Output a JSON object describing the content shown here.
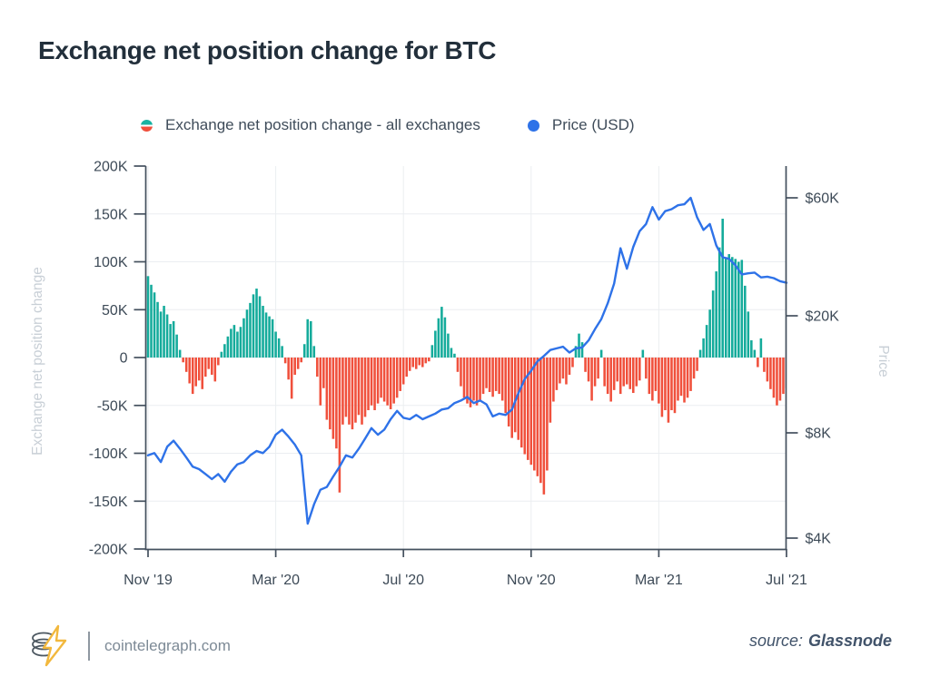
{
  "page": {
    "title": "Exchange net position change for BTC"
  },
  "legend": [
    {
      "label": "Exchange net position change - all exchanges",
      "marker": "split-teal-red-dot"
    },
    {
      "label": "Price (USD)",
      "marker": "blue-dot"
    }
  ],
  "footer": {
    "site": "cointelegraph.com",
    "logo": "cointelegraph-coin-stack-lightning-logo",
    "source_label": "source:",
    "source_name": "Glassnode"
  },
  "colors": {
    "positive_bar": "#14ab9b",
    "negative_bar": "#f0503c",
    "price_line": "#2e72e8",
    "axis": "#44505e",
    "tick_text": "#3d4a57",
    "grid": "#ebeef1",
    "axis_title": "#c8cfd6",
    "title_text": "#222f3b",
    "logo_gold": "#f2b83d",
    "logo_gray": "#4d5861"
  },
  "chart_data": {
    "type": "bar",
    "title": "Exchange net position change for BTC",
    "x_axis": {
      "tick_labels": [
        "Nov '19",
        "Mar '20",
        "Jul '20",
        "Nov '20",
        "Mar '21",
        "Jul '21"
      ],
      "tick_months": [
        0,
        4,
        8,
        12,
        16,
        20
      ],
      "range_months": [
        0,
        20
      ],
      "grid": true
    },
    "left_axis": {
      "title": "Exchange net position change",
      "tick_labels": [
        "200K",
        "150K",
        "100K",
        "50K",
        "0",
        "-50K",
        "-100K",
        "-150K",
        "-200K"
      ],
      "tick_values": [
        200,
        150,
        100,
        50,
        0,
        -50,
        -100,
        -150,
        -200
      ],
      "ylim": [
        -200,
        200
      ],
      "unit": "K BTC"
    },
    "right_axis": {
      "title": "Price",
      "tick_labels": [
        "$60K",
        "$20K",
        "$8K",
        "$4K"
      ],
      "tick_values": [
        60,
        20,
        8,
        4
      ],
      "scale": "log",
      "unit": "K USD"
    },
    "series": [
      {
        "name": "Exchange net position change - all exchanges",
        "type": "bar",
        "axis": "left",
        "unit": "K BTC",
        "start_month": 0,
        "interval_months": 0.1,
        "values": [
          85,
          76,
          68,
          58,
          48,
          54,
          45,
          35,
          38,
          24,
          8,
          -5,
          -15,
          -27,
          -38,
          -30,
          -24,
          -33,
          -20,
          -12,
          -18,
          -25,
          -8,
          6,
          14,
          22,
          30,
          34,
          27,
          32,
          41,
          50,
          57,
          66,
          72,
          64,
          54,
          47,
          43,
          40,
          27,
          20,
          12,
          -6,
          -23,
          -43,
          -18,
          -12,
          -5,
          14,
          40,
          38,
          12,
          -20,
          -50,
          -32,
          -65,
          -75,
          -85,
          -95,
          -141,
          -70,
          -62,
          -70,
          -75,
          -68,
          -60,
          -70,
          -62,
          -55,
          -50,
          -55,
          -48,
          -42,
          -46,
          -50,
          -54,
          -48,
          -42,
          -35,
          -28,
          -20,
          -14,
          -10,
          -12,
          -8,
          -10,
          -6,
          -4,
          13,
          28,
          41,
          53,
          42,
          25,
          10,
          4,
          -15,
          -30,
          -42,
          -48,
          -52,
          -45,
          -50,
          -46,
          -38,
          -32,
          -36,
          -41,
          -35,
          -38,
          -45,
          -58,
          -72,
          -84,
          -78,
          -86,
          -94,
          -101,
          -107,
          -112,
          -118,
          -124,
          -131,
          -143,
          -118,
          -68,
          -46,
          -34,
          -27,
          -22,
          -28,
          -18,
          -10,
          12,
          25,
          16,
          -15,
          -25,
          -45,
          -30,
          -22,
          8,
          -30,
          -38,
          -46,
          -34,
          -25,
          -38,
          -30,
          -28,
          -33,
          -37,
          -30,
          -24,
          8,
          -22,
          -38,
          -45,
          -35,
          -48,
          -62,
          -55,
          -68,
          -55,
          -58,
          -45,
          -40,
          -47,
          -42,
          -35,
          -22,
          -14,
          8,
          20,
          34,
          50,
          70,
          90,
          115,
          145,
          104,
          108,
          105,
          103,
          100,
          102,
          75,
          48,
          18,
          8,
          -10,
          20,
          -15,
          -25,
          -33,
          -42,
          -50,
          -45,
          -38,
          -32
        ]
      },
      {
        "name": "Price (USD)",
        "type": "line",
        "axis": "right",
        "unit": "K USD",
        "start_month": 0,
        "interval_months": 0.2,
        "values": [
          6.9,
          7.0,
          6.6,
          7.3,
          7.6,
          7.2,
          6.8,
          6.4,
          6.3,
          6.1,
          5.9,
          6.1,
          5.8,
          6.2,
          6.5,
          6.6,
          6.9,
          7.1,
          7.0,
          7.3,
          7.9,
          8.2,
          7.8,
          7.4,
          6.9,
          4.4,
          5.0,
          5.5,
          5.6,
          6.0,
          6.4,
          6.9,
          6.8,
          7.2,
          7.7,
          8.3,
          7.9,
          8.2,
          8.9,
          9.5,
          9.0,
          8.9,
          9.2,
          8.9,
          9.1,
          9.3,
          9.6,
          9.7,
          10.1,
          10.3,
          10.6,
          10.1,
          10.3,
          10.0,
          9.1,
          9.3,
          9.2,
          9.6,
          10.9,
          12.2,
          13.0,
          14.0,
          14.6,
          15.3,
          15.5,
          15.7,
          15.0,
          15.5,
          15.6,
          16.5,
          18.0,
          19.5,
          22.5,
          27.0,
          37.5,
          31.0,
          38.0,
          44.0,
          47.0,
          55.0,
          49.0,
          53.0,
          54.0,
          56.0,
          56.5,
          60.0,
          50.0,
          44.5,
          47.0,
          38.5,
          34.5,
          34.0,
          32.0,
          29.4,
          29.7,
          29.9,
          28.6,
          28.8,
          28.4,
          27.6,
          27.2
        ]
      }
    ]
  }
}
